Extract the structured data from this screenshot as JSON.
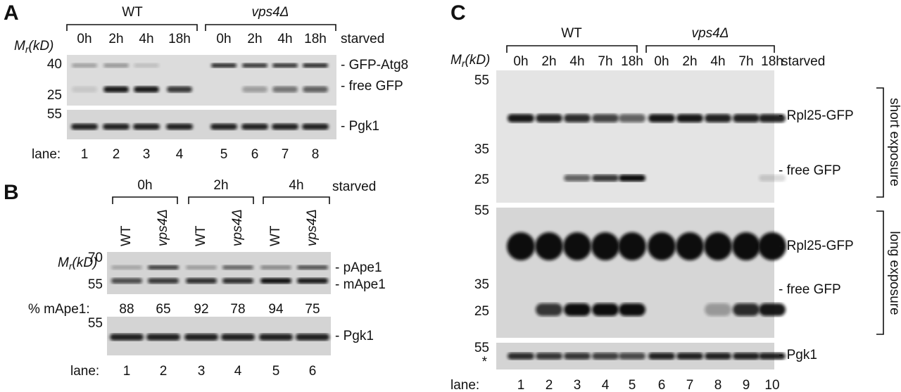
{
  "panel_a": {
    "letter": "A",
    "groups": [
      "WT",
      "vps4Δ"
    ],
    "times": [
      "0h",
      "2h",
      "4h",
      "18h",
      "0h",
      "2h",
      "4h",
      "18h"
    ],
    "time_label": "starved",
    "mr_label": [
      "M",
      "r",
      "(kD)"
    ],
    "markers_top": [
      "40",
      "25"
    ],
    "band_labels": [
      "- GFP-Atg8",
      "- free GFP"
    ],
    "marker_bottom": "55",
    "loading_label": "- Pgk1",
    "lane_label": "lane:",
    "lanes": [
      "1",
      "2",
      "3",
      "4",
      "5",
      "6",
      "7",
      "8"
    ]
  },
  "panel_b": {
    "letter": "B",
    "times": [
      "0h",
      "2h",
      "4h"
    ],
    "time_label": "starved",
    "strains": [
      "WT",
      "vps4Δ",
      "WT",
      "vps4Δ",
      "WT",
      "vps4Δ"
    ],
    "mr_label": [
      "M",
      "r",
      "(kD)"
    ],
    "markers_top": [
      "70",
      "55"
    ],
    "band_labels": [
      "- pApe1",
      "- mApe1"
    ],
    "percent_label": "% mApe1:",
    "percents": [
      88,
      65,
      92,
      78,
      94,
      75
    ],
    "marker_bottom": "55",
    "loading_label": "- Pgk1",
    "lane_label": "lane:",
    "lanes": [
      "1",
      "2",
      "3",
      "4",
      "5",
      "6"
    ]
  },
  "panel_c": {
    "letter": "C",
    "groups": [
      "WT",
      "vps4Δ"
    ],
    "times": [
      "0h",
      "2h",
      "4h",
      "7h",
      "18h",
      "0h",
      "2h",
      "4h",
      "7h",
      "18h"
    ],
    "time_label": "starved",
    "mr_label": [
      "M",
      "r",
      "(kD)"
    ],
    "markers_short": [
      "55",
      "35",
      "25"
    ],
    "band_labels_short": [
      "- Rpl25-GFP",
      "- free GFP"
    ],
    "exposure_short": "short exposure",
    "markers_long": [
      "55",
      "35",
      "25"
    ],
    "band_labels_long": [
      "- Rpl25-GFP",
      "- free GFP"
    ],
    "exposure_long": "long exposure",
    "marker_bottom": "55",
    "asterisk": "*",
    "loading_label": "- Pgk1",
    "lane_label": "lane:",
    "lanes": [
      "1",
      "2",
      "3",
      "4",
      "5",
      "6",
      "7",
      "8",
      "9",
      "10"
    ]
  }
}
